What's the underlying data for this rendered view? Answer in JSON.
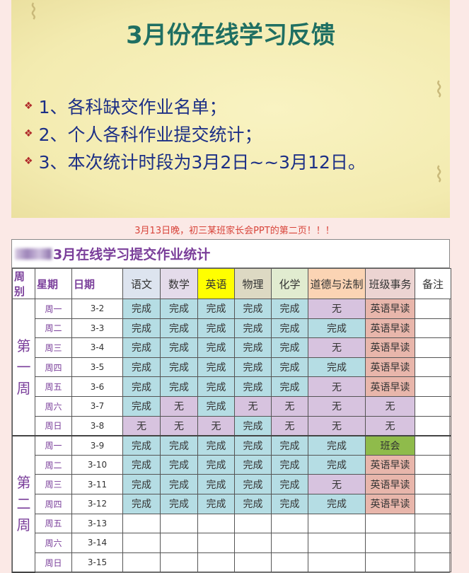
{
  "slide": {
    "title": "3月份在线学习反馈",
    "items": [
      "1、各科缺交作业名单；",
      "2、个人各科作业提交统计；",
      "3、本次统计时段为3月2日~~3月12日。"
    ]
  },
  "caption": "3月13日晚，初三某班家长会PPT的第二页！！！",
  "sheet": {
    "title": "3月在线学习提交作业统计",
    "headers": [
      "周别",
      "星期",
      "日期",
      "语文",
      "数学",
      "英语",
      "物理",
      "化学",
      "道德与法制",
      "班级事务",
      "备注"
    ],
    "header_colors": [
      "#fff",
      "#fff",
      "#fff",
      "#dde4ef",
      "#e4dbea",
      "#ffff00",
      "#ddd9c3",
      "#e1ecd0",
      "#fbd4b4",
      "#ecd4d2",
      "#fff"
    ],
    "weeks": [
      {
        "label": "第一周",
        "rows": [
          {
            "day": "周一",
            "date": "3-2",
            "cells": [
              "完成",
              "完成",
              "完成",
              "完成",
              "完成",
              "无",
              "英语早读"
            ]
          },
          {
            "day": "周二",
            "date": "3-3",
            "cells": [
              "完成",
              "完成",
              "完成",
              "完成",
              "完成",
              "完成",
              "英语早读"
            ]
          },
          {
            "day": "周三",
            "date": "3-4",
            "cells": [
              "完成",
              "完成",
              "完成",
              "完成",
              "完成",
              "无",
              "英语早读"
            ]
          },
          {
            "day": "周四",
            "date": "3-5",
            "cells": [
              "完成",
              "完成",
              "完成",
              "完成",
              "完成",
              "完成",
              "英语早读"
            ]
          },
          {
            "day": "周五",
            "date": "3-6",
            "cells": [
              "完成",
              "完成",
              "完成",
              "完成",
              "完成",
              "无",
              "英语早读"
            ]
          },
          {
            "day": "周六",
            "date": "3-7",
            "cells": [
              "完成",
              "无",
              "完成",
              "无",
              "无",
              "无",
              "无"
            ]
          },
          {
            "day": "周日",
            "date": "3-8",
            "cells": [
              "无",
              "无",
              "无",
              "完成",
              "无",
              "无",
              "无"
            ]
          }
        ]
      },
      {
        "label": "第二周",
        "rows": [
          {
            "day": "周一",
            "date": "3-9",
            "cells": [
              "完成",
              "完成",
              "完成",
              "完成",
              "完成",
              "完成",
              "班会"
            ]
          },
          {
            "day": "周二",
            "date": "3-10",
            "cells": [
              "完成",
              "完成",
              "完成",
              "完成",
              "完成",
              "完成",
              "英语早读"
            ]
          },
          {
            "day": "周三",
            "date": "3-11",
            "cells": [
              "完成",
              "完成",
              "完成",
              "完成",
              "完成",
              "无",
              "英语早读"
            ]
          },
          {
            "day": "周四",
            "date": "3-12",
            "cells": [
              "完成",
              "完成",
              "完成",
              "完成",
              "完成",
              "完成",
              "英语早读"
            ]
          },
          {
            "day": "周五",
            "date": "3-13",
            "cells": [
              "",
              "",
              "",
              "",
              "",
              "",
              ""
            ]
          },
          {
            "day": "周六",
            "date": "3-14",
            "cells": [
              "",
              "",
              "",
              "",
              "",
              "",
              ""
            ]
          },
          {
            "day": "周日",
            "date": "3-15",
            "cells": [
              "",
              "",
              "",
              "",
              "",
              "",
              ""
            ]
          }
        ]
      }
    ]
  }
}
